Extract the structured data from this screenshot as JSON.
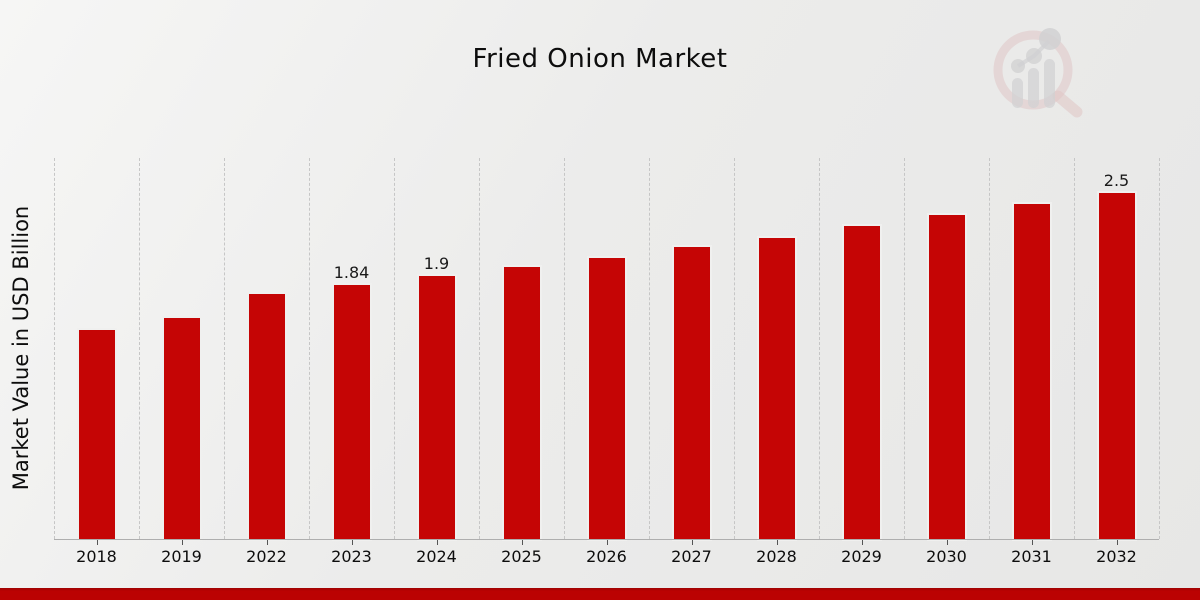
{
  "title": "Fried Onion Market",
  "y_axis_label": "Market Value in USD Billion",
  "chart_data": {
    "type": "bar",
    "title": "Fried Onion Market",
    "xlabel": "",
    "ylabel": "Market Value in USD Billion",
    "categories": [
      "2018",
      "2019",
      "2022",
      "2023",
      "2024",
      "2025",
      "2026",
      "2027",
      "2028",
      "2029",
      "2030",
      "2031",
      "2032"
    ],
    "values": [
      1.51,
      1.6,
      1.77,
      1.84,
      1.9,
      1.97,
      2.03,
      2.11,
      2.18,
      2.26,
      2.34,
      2.42,
      2.5
    ],
    "value_labels": [
      "",
      "",
      "",
      "1.84",
      "1.9",
      "",
      "",
      "",
      "",
      "",
      "",
      "",
      "2.5"
    ],
    "ylim": [
      0,
      2.75
    ],
    "bar_color": "#c50505",
    "grid": "vertical-dashed",
    "legend": "none",
    "y_ticks_visible": false
  },
  "footer": {
    "accent_color": "#bb0202"
  },
  "watermark_icon": "market-growth-magnifier-logo"
}
